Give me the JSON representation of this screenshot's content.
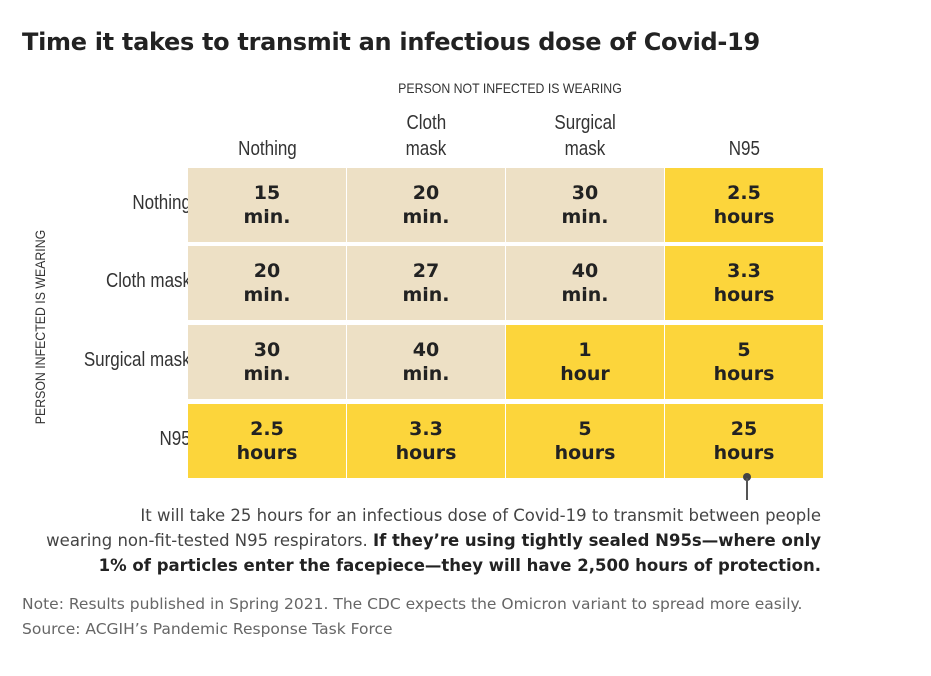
{
  "title": "Time it takes to transmit an infectious dose of Covid-19",
  "chart_data": {
    "type": "heatmap",
    "title": "Time it takes to transmit an infectious dose of Covid-19",
    "column_axis_label": "PERSON NOT INFECTED IS WEARING",
    "row_axis_label": "PERSON INFECTED IS WEARING",
    "columns": [
      {
        "line1": "",
        "line2": "Nothing"
      },
      {
        "line1": "Cloth",
        "line2": "mask"
      },
      {
        "line1": "Surgical",
        "line2": "mask"
      },
      {
        "line1": "",
        "line2": "N95"
      }
    ],
    "rows": [
      "Nothing",
      "Cloth mask",
      "Surgical mask",
      "N95"
    ],
    "cells": [
      [
        {
          "value": "15",
          "unit": "min.",
          "level": "low"
        },
        {
          "value": "20",
          "unit": "min.",
          "level": "low"
        },
        {
          "value": "30",
          "unit": "min.",
          "level": "low"
        },
        {
          "value": "2.5",
          "unit": "hours",
          "level": "high"
        }
      ],
      [
        {
          "value": "20",
          "unit": "min.",
          "level": "low"
        },
        {
          "value": "27",
          "unit": "min.",
          "level": "low"
        },
        {
          "value": "40",
          "unit": "min.",
          "level": "low"
        },
        {
          "value": "3.3",
          "unit": "hours",
          "level": "high"
        }
      ],
      [
        {
          "value": "30",
          "unit": "min.",
          "level": "low"
        },
        {
          "value": "40",
          "unit": "min.",
          "level": "low"
        },
        {
          "value": "1",
          "unit": "hour",
          "level": "high"
        },
        {
          "value": "5",
          "unit": "hours",
          "level": "high"
        }
      ],
      [
        {
          "value": "2.5",
          "unit": "hours",
          "level": "high"
        },
        {
          "value": "3.3",
          "unit": "hours",
          "level": "high"
        },
        {
          "value": "5",
          "unit": "hours",
          "level": "high"
        },
        {
          "value": "25",
          "unit": "hours",
          "level": "high"
        }
      ]
    ],
    "colors": {
      "low": "#ede0c5",
      "high": "#fcd53b"
    }
  },
  "annotation": {
    "line1": "It will take 25 hours for an infectious dose of Covid-19 to transmit between people",
    "line2_plain": "wearing non-fit-tested N95 respirators. ",
    "line2_bold": "If they’re using tightly sealed N95s—where only",
    "line3_bold": "1% of particles enter the facepiece—they will have 2,500 hours of protection."
  },
  "note": "Note: Results published in Spring 2021. The CDC expects the Omicron variant to spread more easily.",
  "source": "Source: ACGIH’s Pandemic Response Task Force"
}
